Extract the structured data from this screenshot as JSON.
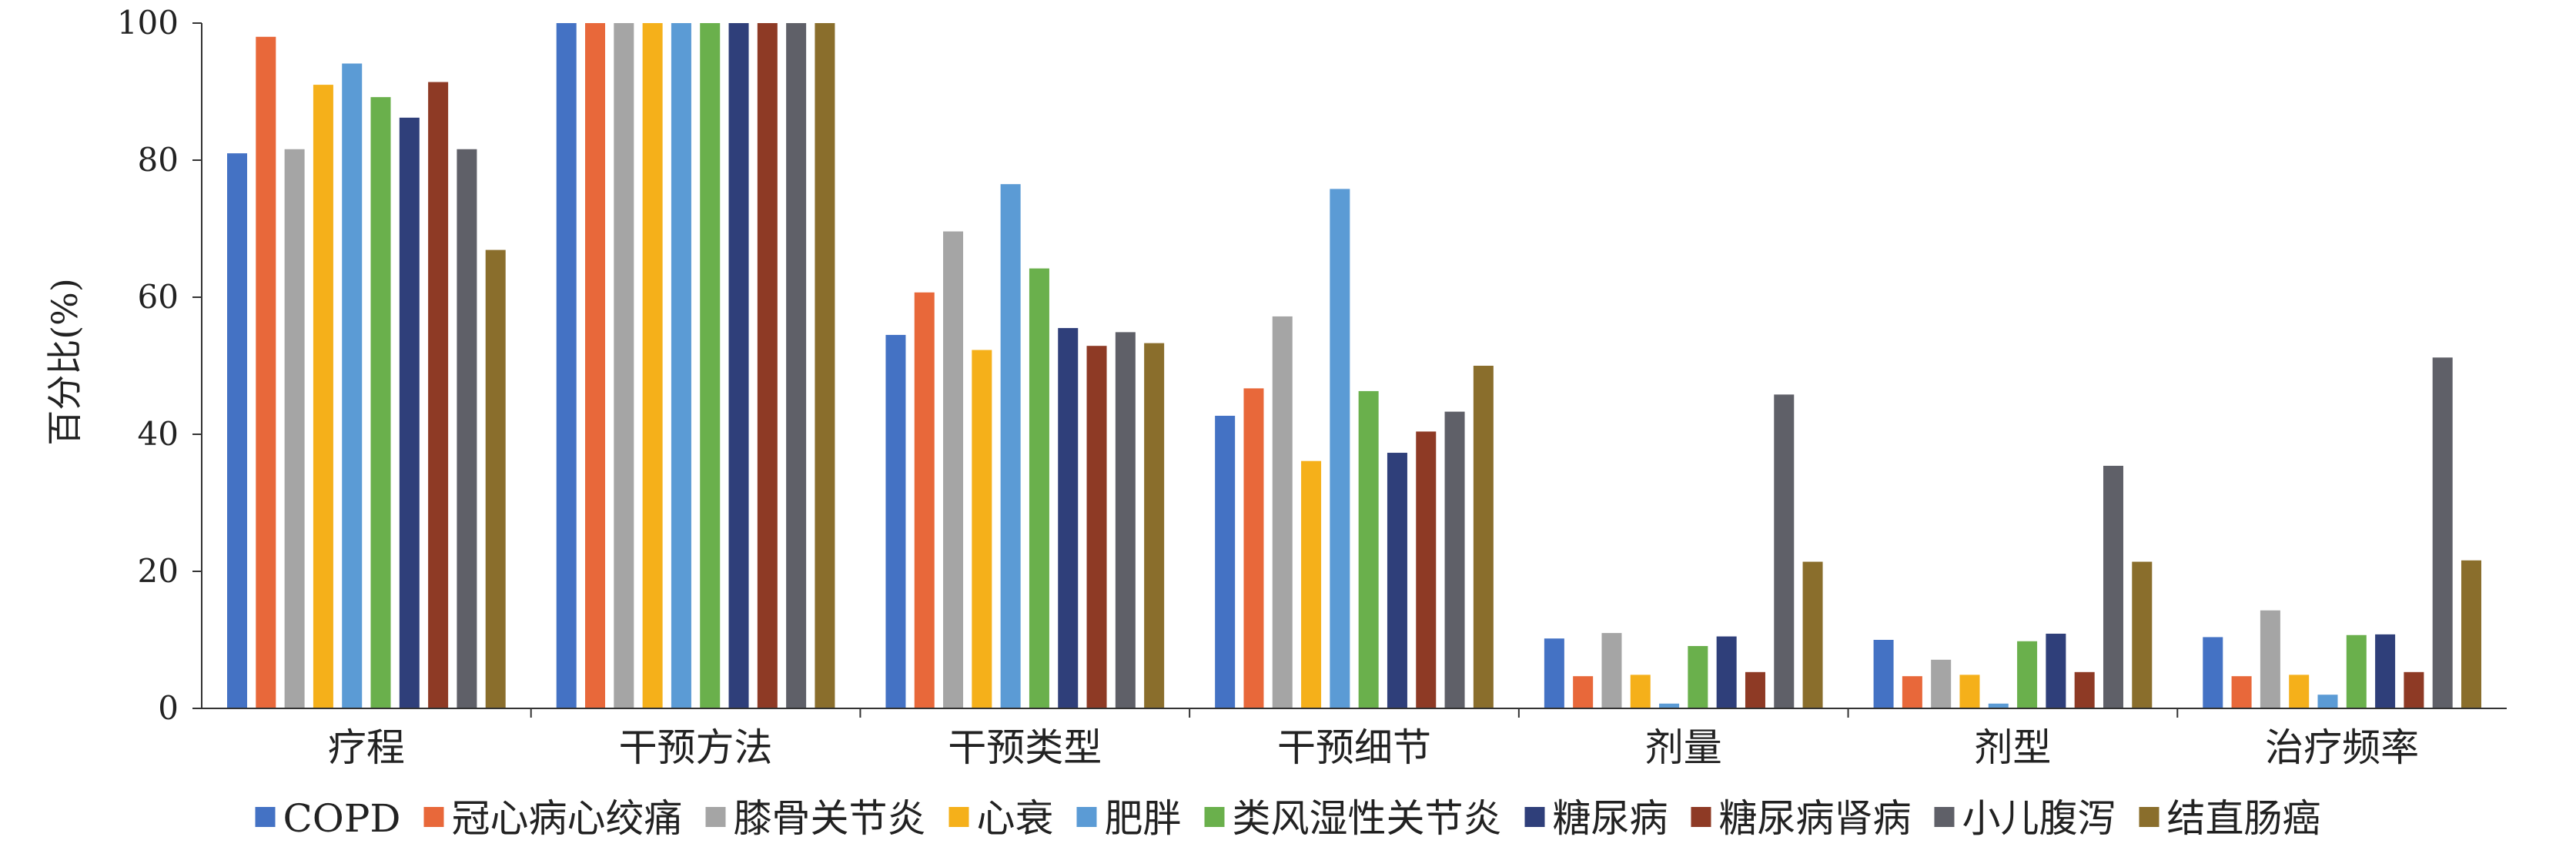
{
  "chart_data": {
    "type": "bar",
    "title": "",
    "xlabel": "",
    "ylabel": "百分比(%)",
    "ylim": [
      0,
      100
    ],
    "yticks": [
      0,
      20,
      40,
      60,
      80,
      100
    ],
    "grid": false,
    "legend_position": "bottom",
    "categories": [
      "疗程",
      "干预方法",
      "干预类型",
      "干预细节",
      "剂量",
      "剂型",
      "治疗频率"
    ],
    "series": [
      {
        "name": "COPD",
        "color": "#4472C4",
        "values": [
          81,
          100,
          54.5,
          42.7,
          10.2,
          10,
          10.4
        ]
      },
      {
        "name": "冠心病心绞痛",
        "color": "#E8683A",
        "values": [
          98,
          100,
          60.7,
          46.7,
          4.7,
          4.7,
          4.7
        ]
      },
      {
        "name": "膝骨关节炎",
        "color": "#A5A5A5",
        "values": [
          81.6,
          100,
          69.6,
          57.2,
          11,
          7.1,
          14.3
        ]
      },
      {
        "name": "心衰",
        "color": "#F5B01A",
        "values": [
          91,
          100,
          52.3,
          36.1,
          4.9,
          4.9,
          4.9
        ]
      },
      {
        "name": "肥胖",
        "color": "#5B9BD5",
        "values": [
          94.1,
          100,
          76.5,
          75.8,
          0.7,
          0.7,
          2
        ]
      },
      {
        "name": "类风湿性关节炎",
        "color": "#6AB04C",
        "values": [
          89.2,
          100,
          64.2,
          46.3,
          9.1,
          9.8,
          10.7
        ]
      },
      {
        "name": "糖尿病",
        "color": "#2F3F7A",
        "values": [
          86.2,
          100,
          55.5,
          37.3,
          10.5,
          10.9,
          10.8
        ]
      },
      {
        "name": "糖尿病肾病",
        "color": "#8E3A25",
        "values": [
          91.4,
          100,
          52.9,
          40.4,
          5.3,
          5.3,
          5.3
        ]
      },
      {
        "name": "小儿腹泻",
        "color": "#5F6068",
        "values": [
          81.6,
          100,
          54.9,
          43.3,
          45.8,
          35.4,
          51.2
        ]
      },
      {
        "name": "结直肠癌",
        "color": "#8A6E2C",
        "values": [
          66.9,
          100,
          53.3,
          50,
          21.4,
          21.4,
          21.6
        ]
      }
    ]
  }
}
